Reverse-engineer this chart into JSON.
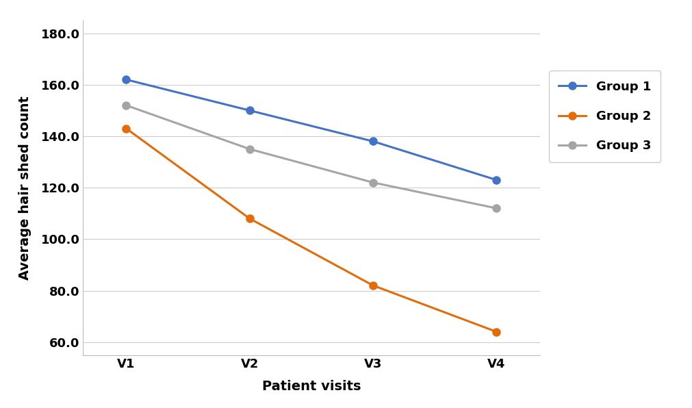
{
  "visits": [
    "V1",
    "V2",
    "V3",
    "V4"
  ],
  "group1": [
    162.0,
    150.0,
    138.0,
    123.0
  ],
  "group2": [
    143.0,
    108.0,
    82.0,
    64.0
  ],
  "group3": [
    152.0,
    135.0,
    122.0,
    112.0
  ],
  "group1_color": "#4472C4",
  "group2_color": "#E36C09",
  "group3_color": "#A5A5A5",
  "xlabel": "Patient visits",
  "ylabel": "Average hair shed count",
  "ylim_min": 55.0,
  "ylim_max": 185.0,
  "yticks": [
    60.0,
    80.0,
    100.0,
    120.0,
    140.0,
    160.0,
    180.0
  ],
  "legend_labels": [
    "Group 1",
    "Group 2",
    "Group 3"
  ],
  "marker": "o",
  "marker_size": 8,
  "linewidth": 2.2,
  "background_color": "#FFFFFF",
  "grid_color": "#CCCCCC",
  "tick_fontsize": 13,
  "label_fontsize": 14,
  "legend_fontsize": 13
}
